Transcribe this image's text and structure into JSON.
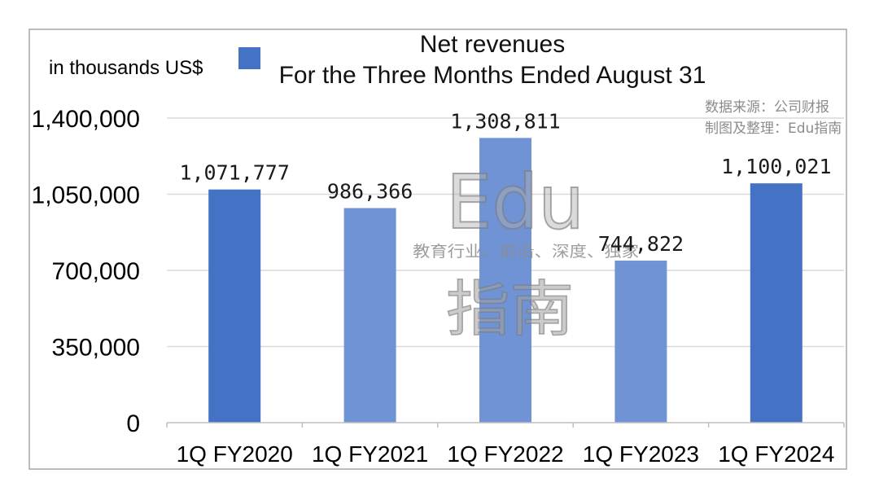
{
  "annotations": {
    "source": "数据来源：公司财报",
    "credit": "制图及整理：Edu指南"
  },
  "watermark": {
    "logo": "Edu",
    "slogan": "教育行业、前沿、深度、独家",
    "name": "指南"
  },
  "chart_data": {
    "type": "bar",
    "title": "",
    "xlabel": "",
    "unit_label": "in thousands US$",
    "legend": {
      "position": "top",
      "label_lines": [
        "Net revenues",
        "For the Three Months Ended August 31"
      ],
      "color": "#4472C4"
    },
    "categories": [
      "1Q FY2020",
      "1Q FY2021",
      "1Q FY2022",
      "1Q FY2023",
      "1Q FY2024"
    ],
    "series": [
      {
        "values": [
          1071777,
          986366,
          1308811,
          744822,
          1100021
        ],
        "colors": [
          "#4472C4",
          "#7093D6",
          "#7093D6",
          "#7093D6",
          "#4472C4"
        ]
      }
    ],
    "data_labels": [
      "1,071,777",
      "986,366",
      "1,308,811",
      "744,822",
      "1,100,021"
    ],
    "ylim": [
      0,
      1400000
    ],
    "y_ticks": [
      0,
      350000,
      700000,
      1050000,
      1400000
    ],
    "y_tick_labels": [
      "0",
      "350,000",
      "700,000",
      "1,050,000",
      "1,400,000"
    ],
    "grid": true
  }
}
